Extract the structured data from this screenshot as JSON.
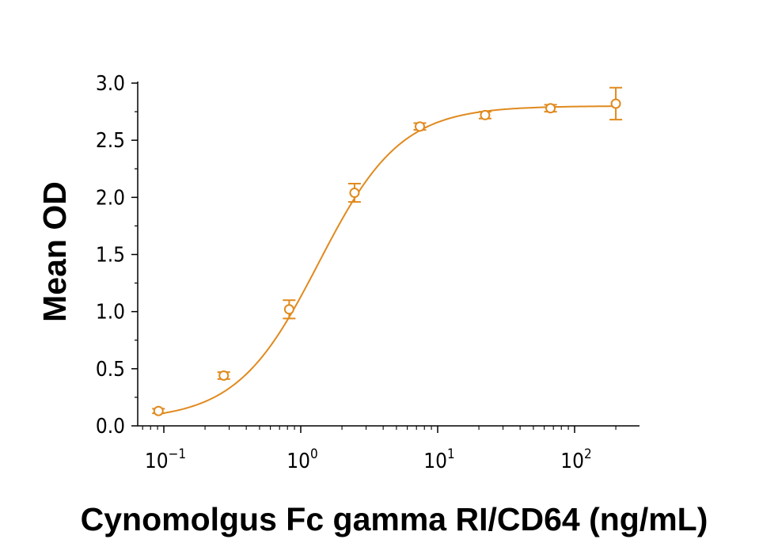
{
  "chart_data": {
    "type": "scatter",
    "title": "",
    "xlabel": "Cynomolgus Fc gamma RI/CD64 (ng/mL)",
    "ylabel": "Mean OD",
    "x_scale": "log",
    "xlim": [
      0.07,
      300
    ],
    "ylim": [
      0,
      3.0
    ],
    "x_ticks": [
      {
        "base": "10",
        "exp": "−1",
        "value": 0.1
      },
      {
        "base": "10",
        "exp": "0",
        "value": 1
      },
      {
        "base": "10",
        "exp": "1",
        "value": 10
      },
      {
        "base": "10",
        "exp": "2",
        "value": 100
      }
    ],
    "y_ticks": [
      "0.0",
      "0.5",
      "1.0",
      "1.5",
      "2.0",
      "2.5",
      "3.0"
    ],
    "grid": false,
    "color": "#e08a1e",
    "series": [
      {
        "x": [
          0.0914,
          0.274,
          0.823,
          2.47,
          7.41,
          22.2,
          66.7,
          200
        ],
        "y": [
          0.13,
          0.44,
          1.02,
          2.04,
          2.62,
          2.72,
          2.78,
          2.82
        ],
        "error": [
          0.02,
          0.03,
          0.08,
          0.08,
          0.03,
          0.03,
          0.03,
          0.14
        ]
      }
    ],
    "fit_curve": {
      "model": "4PL",
      "bottom": 0.05,
      "top": 2.8,
      "ec50": 1.35,
      "hill": 1.45
    }
  }
}
